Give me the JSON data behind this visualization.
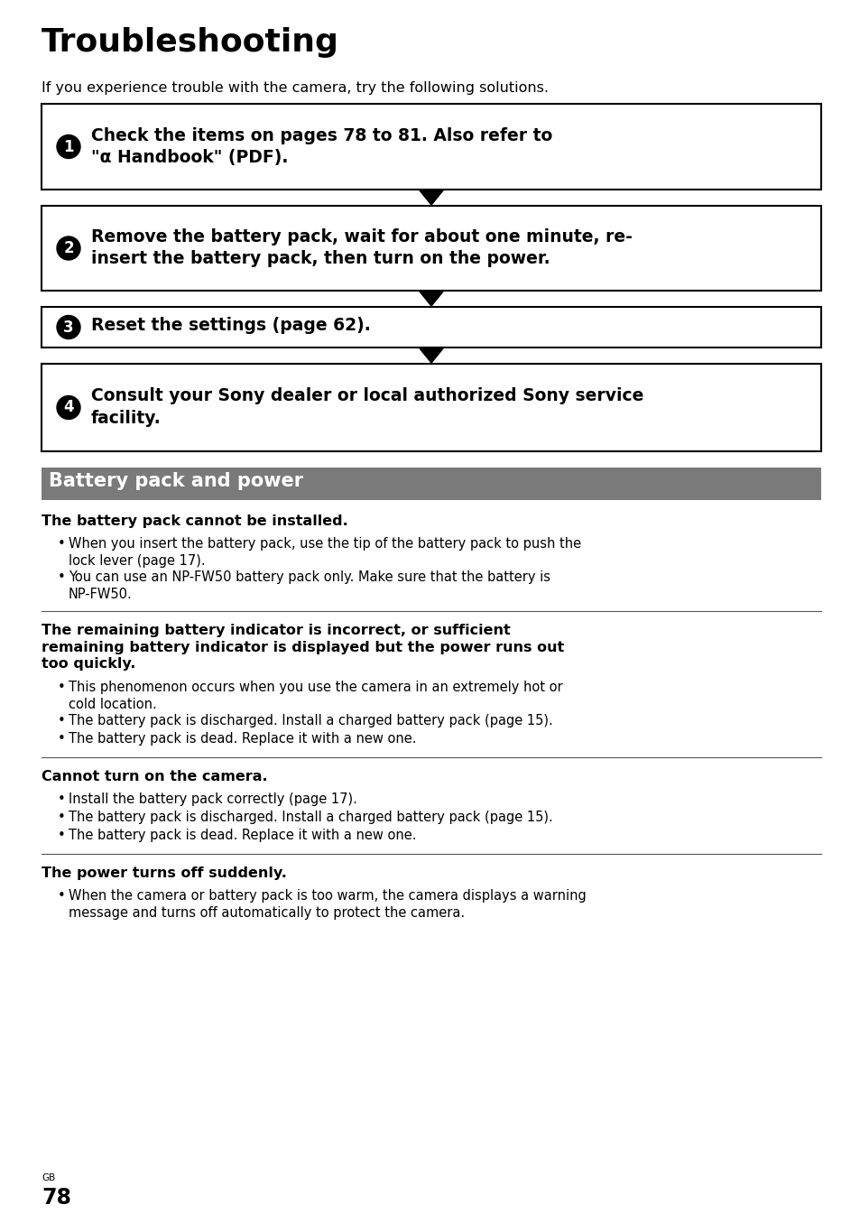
{
  "title": "Troubleshooting",
  "intro": "If you experience trouble with the camera, try the following solutions.",
  "steps": [
    {
      "num": "1",
      "text": "Check the items on pages 78 to 81. Also refer to\n\"α Handbook\" (PDF)."
    },
    {
      "num": "2",
      "text": "Remove the battery pack, wait for about one minute, re-\ninsert the battery pack, then turn on the power."
    },
    {
      "num": "3",
      "text": "Reset the settings (page 62)."
    },
    {
      "num": "4",
      "text": "Consult your Sony dealer or local authorized Sony service\nfacility."
    }
  ],
  "section_title": "Battery pack and power",
  "section_bg": "#7a7a7a",
  "section_text_color": "#ffffff",
  "subsections": [
    {
      "heading": "The battery pack cannot be installed.",
      "heading_bold": true,
      "bullets": [
        "When you insert the battery pack, use the tip of the battery pack to push the\nlock lever (page 17).",
        "You can use an NP-FW50 battery pack only. Make sure that the battery is\nNP-FW50."
      ],
      "separator_below": true
    },
    {
      "heading": "The remaining battery indicator is incorrect, or sufficient\nremaining battery indicator is displayed but the power runs out\ntoo quickly.",
      "heading_bold": true,
      "bullets": [
        "This phenomenon occurs when you use the camera in an extremely hot or\ncold location.",
        "The battery pack is discharged. Install a charged battery pack (page 15).",
        "The battery pack is dead. Replace it with a new one."
      ],
      "separator_below": true
    },
    {
      "heading": "Cannot turn on the camera.",
      "heading_bold": true,
      "bullets": [
        "Install the battery pack correctly (page 17).",
        "The battery pack is discharged. Install a charged battery pack (page 15).",
        "The battery pack is dead. Replace it with a new one."
      ],
      "separator_below": true
    },
    {
      "heading": "The power turns off suddenly.",
      "heading_bold": true,
      "bullets": [
        "When the camera or battery pack is too warm, the camera displays a warning\nmessage and turns off automatically to protect the camera."
      ],
      "separator_below": false
    }
  ],
  "page_num": "78",
  "bg_color": "#ffffff",
  "text_color": "#000000",
  "box_border_color": "#000000",
  "arrow_color": "#000000"
}
